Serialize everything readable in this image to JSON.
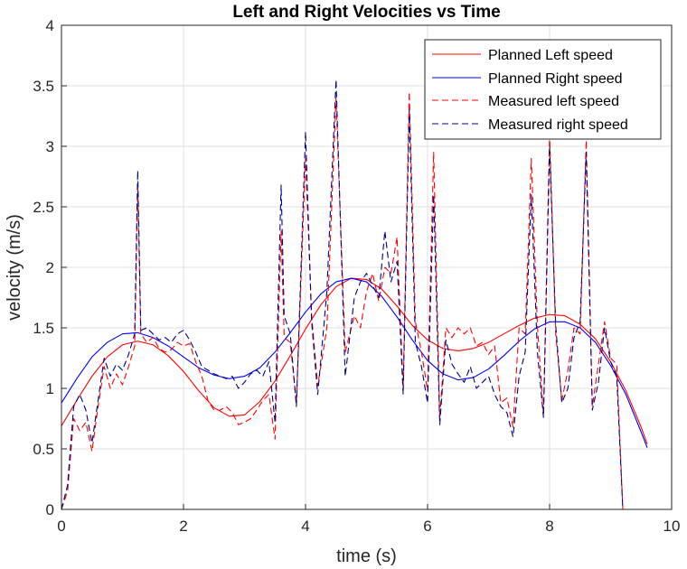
{
  "chart_data": {
    "type": "line",
    "title": "Left and Right Velocities vs Time",
    "xlabel": "time (s)",
    "ylabel": "velocity (m/s)",
    "xlim": [
      0,
      10
    ],
    "ylim": [
      0,
      4
    ],
    "xticks": [
      0,
      2,
      4,
      6,
      8,
      10
    ],
    "yticks": [
      0,
      0.5,
      1,
      1.5,
      2,
      2.5,
      3,
      3.5,
      4
    ],
    "xtick_labels": [
      "0",
      "2",
      "4",
      "6",
      "8",
      "10"
    ],
    "ytick_labels": [
      "0",
      "0.5",
      "1",
      "1.5",
      "2",
      "2.5",
      "3",
      "3.5",
      "4"
    ],
    "grid": true,
    "legend_position": "top-right",
    "series": [
      {
        "name": "Planned Left speed",
        "color": "#ff0000",
        "style": "solid",
        "x": [
          0,
          0.25,
          0.5,
          0.75,
          1.0,
          1.25,
          1.5,
          1.75,
          2.0,
          2.25,
          2.5,
          2.75,
          3.0,
          3.25,
          3.5,
          3.75,
          4.0,
          4.25,
          4.5,
          4.75,
          5.0,
          5.25,
          5.5,
          5.75,
          6.0,
          6.25,
          6.5,
          6.75,
          7.0,
          7.25,
          7.5,
          7.75,
          8.0,
          8.25,
          8.5,
          8.75,
          9.0,
          9.25,
          9.5,
          9.6
        ],
        "y": [
          0.69,
          0.9,
          1.1,
          1.26,
          1.36,
          1.39,
          1.36,
          1.27,
          1.14,
          0.98,
          0.84,
          0.77,
          0.78,
          0.89,
          1.06,
          1.27,
          1.49,
          1.69,
          1.84,
          1.91,
          1.9,
          1.82,
          1.68,
          1.52,
          1.4,
          1.33,
          1.31,
          1.33,
          1.38,
          1.45,
          1.52,
          1.58,
          1.61,
          1.6,
          1.53,
          1.41,
          1.22,
          0.98,
          0.68,
          0.54
        ]
      },
      {
        "name": "Planned Right speed",
        "color": "#0000ff",
        "style": "solid",
        "x": [
          0,
          0.25,
          0.5,
          0.75,
          1.0,
          1.25,
          1.5,
          1.75,
          2.0,
          2.25,
          2.5,
          2.75,
          3.0,
          3.25,
          3.5,
          3.75,
          4.0,
          4.25,
          4.5,
          4.75,
          5.0,
          5.25,
          5.5,
          5.75,
          6.0,
          6.25,
          6.5,
          6.75,
          7.0,
          7.25,
          7.5,
          7.75,
          8.0,
          8.25,
          8.5,
          8.75,
          9.0,
          9.25,
          9.5,
          9.6
        ],
        "y": [
          0.88,
          1.08,
          1.26,
          1.38,
          1.45,
          1.46,
          1.42,
          1.35,
          1.26,
          1.17,
          1.11,
          1.08,
          1.1,
          1.17,
          1.3,
          1.46,
          1.63,
          1.78,
          1.88,
          1.91,
          1.88,
          1.76,
          1.59,
          1.4,
          1.23,
          1.12,
          1.07,
          1.09,
          1.16,
          1.27,
          1.39,
          1.49,
          1.55,
          1.55,
          1.5,
          1.38,
          1.19,
          0.95,
          0.64,
          0.51
        ]
      },
      {
        "name": "Measured left speed",
        "color": "#ff0000",
        "style": "dashed",
        "x": [
          0,
          0.1,
          0.2,
          0.3,
          0.4,
          0.5,
          0.6,
          0.7,
          0.8,
          0.9,
          1.0,
          1.1,
          1.2,
          1.25,
          1.3,
          1.4,
          1.5,
          1.6,
          1.7,
          1.8,
          1.9,
          2.0,
          2.1,
          2.2,
          2.3,
          2.4,
          2.5,
          2.6,
          2.7,
          2.8,
          2.9,
          3.0,
          3.1,
          3.2,
          3.3,
          3.4,
          3.5,
          3.6,
          3.65,
          3.75,
          3.85,
          4.0,
          4.1,
          4.2,
          4.35,
          4.5,
          4.65,
          4.8,
          4.9,
          5.0,
          5.1,
          5.2,
          5.3,
          5.4,
          5.5,
          5.6,
          5.7,
          5.8,
          5.9,
          6.0,
          6.1,
          6.2,
          6.3,
          6.4,
          6.5,
          6.6,
          6.7,
          6.8,
          6.9,
          7.0,
          7.1,
          7.2,
          7.3,
          7.4,
          7.5,
          7.6,
          7.7,
          7.8,
          7.9,
          8.0,
          8.1,
          8.2,
          8.3,
          8.4,
          8.5,
          8.6,
          8.7,
          8.8,
          8.9,
          9.0,
          9.1,
          9.2,
          9.25,
          9.3,
          9.5,
          9.6
        ],
        "y": [
          0.0,
          0.15,
          0.75,
          0.65,
          0.72,
          0.48,
          0.85,
          1.18,
          1.0,
          1.12,
          1.03,
          1.18,
          1.35,
          2.68,
          1.45,
          1.38,
          1.42,
          1.33,
          1.3,
          1.32,
          1.38,
          1.35,
          1.37,
          1.22,
          1.1,
          0.9,
          0.82,
          0.82,
          0.85,
          0.8,
          0.7,
          0.72,
          0.75,
          0.82,
          0.9,
          0.95,
          0.58,
          2.3,
          1.42,
          1.38,
          0.88,
          2.9,
          1.6,
          1.02,
          1.5,
          3.4,
          1.3,
          1.6,
          1.5,
          1.8,
          1.95,
          1.72,
          2.0,
          1.95,
          2.25,
          1.0,
          3.45,
          1.55,
          1.3,
          0.98,
          2.95,
          0.75,
          1.5,
          1.42,
          1.5,
          1.45,
          1.5,
          1.35,
          1.38,
          1.28,
          1.35,
          0.88,
          0.92,
          0.68,
          1.5,
          1.45,
          2.9,
          1.52,
          0.78,
          3.1,
          1.45,
          0.9,
          1.15,
          1.5,
          1.45,
          3.05,
          0.85,
          1.2,
          1.55,
          1.25,
          1.2,
          0.0,
          0.0,
          0.0,
          0.0,
          0.0
        ]
      },
      {
        "name": "Measured right speed",
        "color": "#00008b",
        "style": "dashed",
        "x": [
          0,
          0.1,
          0.2,
          0.3,
          0.4,
          0.5,
          0.6,
          0.7,
          0.8,
          0.9,
          1.0,
          1.1,
          1.2,
          1.25,
          1.3,
          1.4,
          1.5,
          1.6,
          1.7,
          1.8,
          1.9,
          2.0,
          2.1,
          2.2,
          2.3,
          2.4,
          2.5,
          2.6,
          2.7,
          2.8,
          2.9,
          3.0,
          3.1,
          3.2,
          3.3,
          3.4,
          3.5,
          3.6,
          3.65,
          3.75,
          3.85,
          4.0,
          4.1,
          4.2,
          4.35,
          4.5,
          4.65,
          4.8,
          4.9,
          5.0,
          5.1,
          5.2,
          5.3,
          5.4,
          5.5,
          5.6,
          5.7,
          5.8,
          5.9,
          6.0,
          6.1,
          6.2,
          6.3,
          6.4,
          6.5,
          6.6,
          6.7,
          6.8,
          6.9,
          7.0,
          7.1,
          7.2,
          7.3,
          7.4,
          7.5,
          7.6,
          7.7,
          7.8,
          7.9,
          8.0,
          8.1,
          8.2,
          8.3,
          8.4,
          8.5,
          8.6,
          8.7,
          8.8,
          8.9,
          9.0,
          9.1,
          9.2,
          9.25,
          9.3,
          9.5,
          9.6
        ],
        "y": [
          0.0,
          0.2,
          0.85,
          0.95,
          0.82,
          0.55,
          0.9,
          1.25,
          1.1,
          1.2,
          1.15,
          1.28,
          1.45,
          2.8,
          1.48,
          1.5,
          1.45,
          1.4,
          1.42,
          1.38,
          1.45,
          1.48,
          1.4,
          1.3,
          1.18,
          1.15,
          1.12,
          1.1,
          1.08,
          1.1,
          1.0,
          1.05,
          1.12,
          1.15,
          1.1,
          1.22,
          0.72,
          2.68,
          1.6,
          1.45,
          0.85,
          3.12,
          1.55,
          0.95,
          1.8,
          3.55,
          1.1,
          1.75,
          1.88,
          1.95,
          1.85,
          1.75,
          2.3,
          1.88,
          2.05,
          0.95,
          3.3,
          1.38,
          1.18,
          0.88,
          2.6,
          0.7,
          1.4,
          1.2,
          1.12,
          1.05,
          1.18,
          1.0,
          1.05,
          1.1,
          0.95,
          0.85,
          0.8,
          0.6,
          1.1,
          1.3,
          2.6,
          1.3,
          0.76,
          3.0,
          1.52,
          0.88,
          1.0,
          1.42,
          1.55,
          2.95,
          0.82,
          1.05,
          1.5,
          1.22,
          1.1,
          0.0,
          0.0,
          0.0,
          0.0,
          0.0
        ]
      }
    ]
  }
}
